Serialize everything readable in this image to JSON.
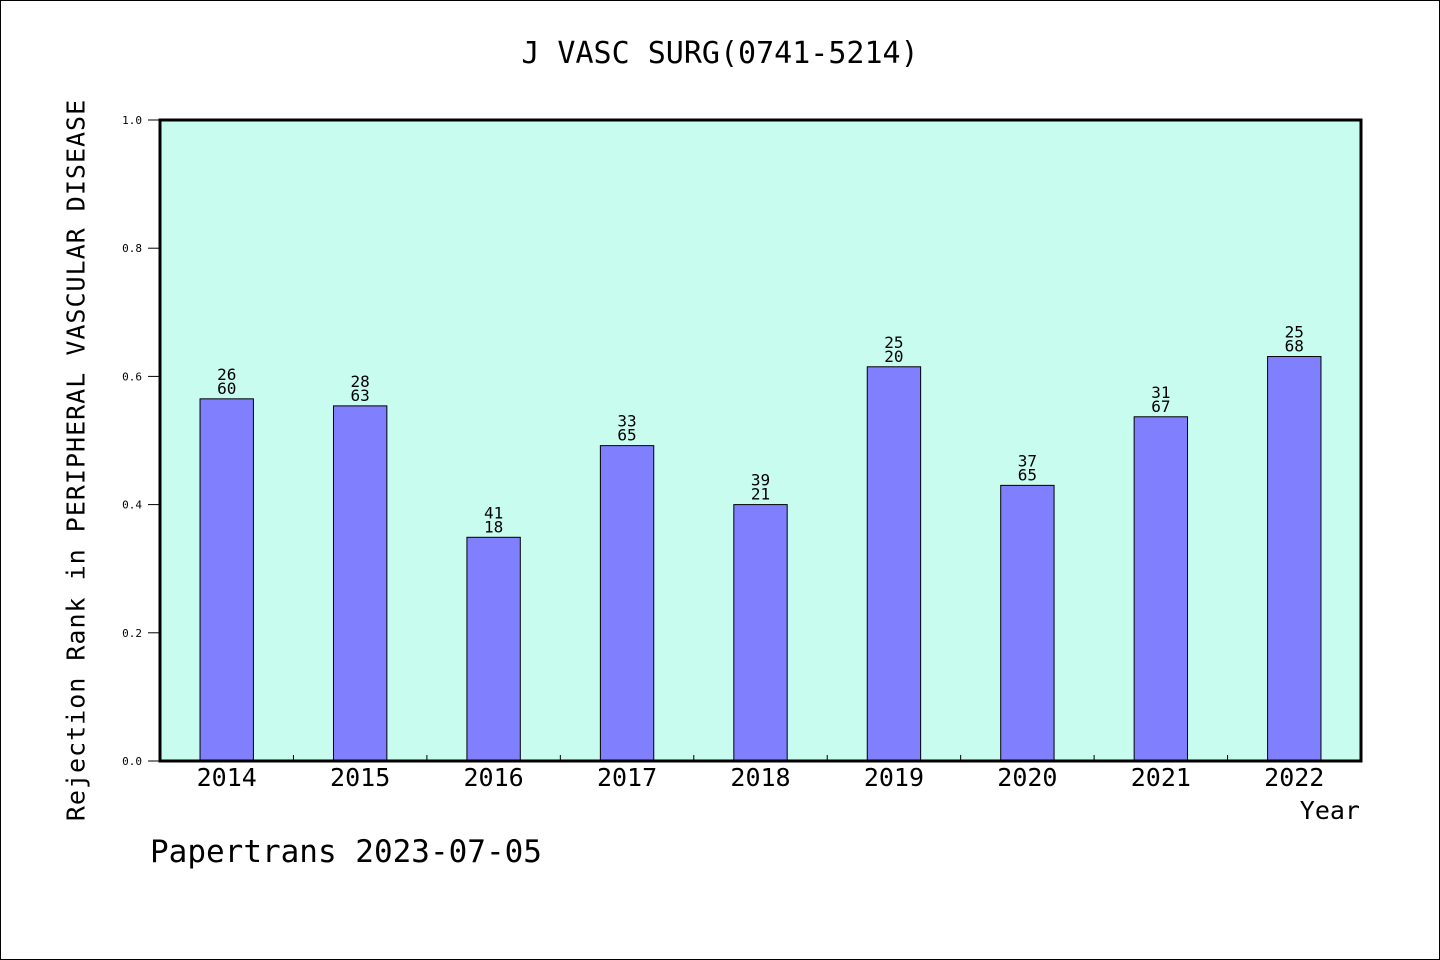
{
  "chart_data": {
    "type": "bar",
    "title": "J VASC SURG(0741-5214)",
    "xlabel": "Year",
    "ylabel": "Rejection Rank in PERIPHERAL VASCULAR DISEASE",
    "categories": [
      "2014",
      "2015",
      "2016",
      "2017",
      "2018",
      "2019",
      "2020",
      "2021",
      "2022"
    ],
    "values": [
      0.565,
      0.554,
      0.349,
      0.492,
      0.4,
      0.615,
      0.43,
      0.537,
      0.631
    ],
    "bar_labels": [
      [
        "26",
        "60"
      ],
      [
        "28",
        "63"
      ],
      [
        "41",
        "18"
      ],
      [
        "33",
        "65"
      ],
      [
        "39",
        "21"
      ],
      [
        "25",
        "20"
      ],
      [
        "37",
        "65"
      ],
      [
        "31",
        "67"
      ],
      [
        "25",
        "68"
      ]
    ],
    "ylim": [
      0,
      1.0
    ],
    "yticks": [
      "0.0",
      "0.2",
      "0.4",
      "0.6",
      "0.8",
      "1.0"
    ],
    "grid": false,
    "colors": {
      "plot_background": "#c8fcee",
      "bar": "#8080ff",
      "bar_edge": "#000000"
    }
  },
  "footer": "Papertrans 2023-07-05"
}
